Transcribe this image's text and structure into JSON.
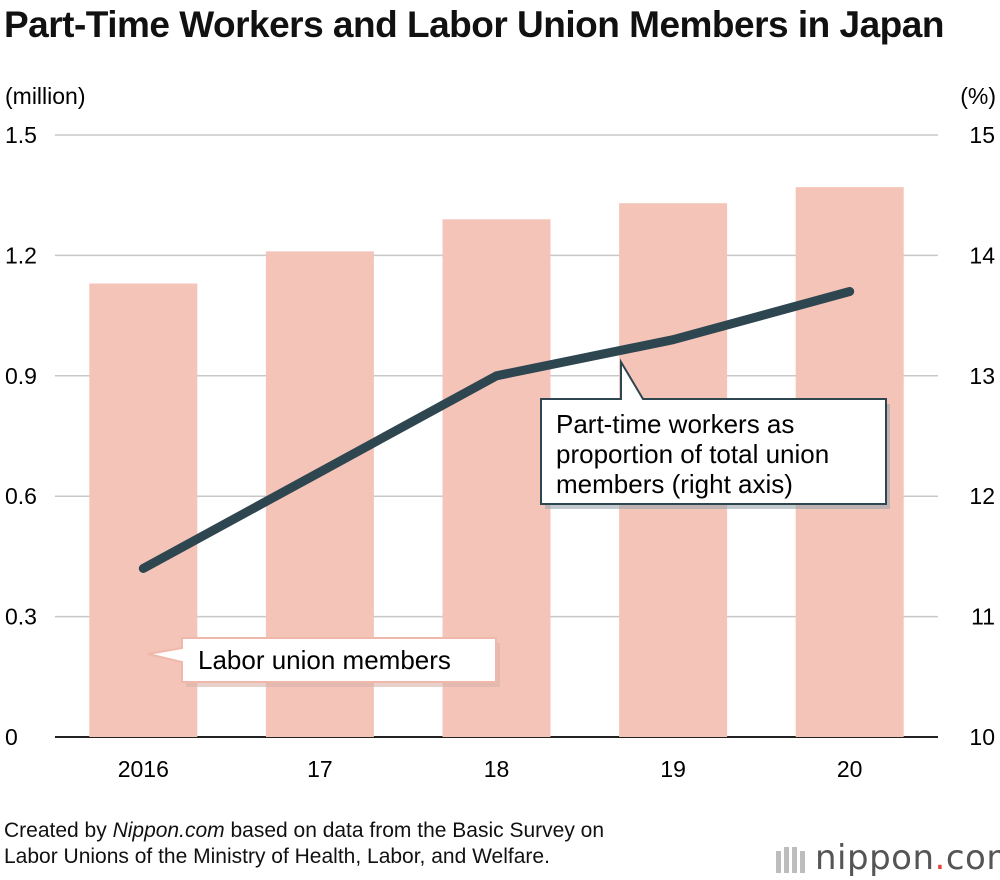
{
  "title": "Part-Time Workers and Labor Union Members in Japan",
  "chart_data": {
    "type": "bar",
    "categories": [
      "2016",
      "17",
      "18",
      "19",
      "20"
    ],
    "series": [
      {
        "name": "Labor union members",
        "type": "bar",
        "axis": "left",
        "values": [
          1.13,
          1.21,
          1.29,
          1.33,
          1.37
        ],
        "color": "#f4c4b8"
      },
      {
        "name": "Part-time workers as proportion of total union members (right axis)",
        "type": "line",
        "axis": "right",
        "values": [
          11.4,
          12.2,
          13.0,
          13.3,
          13.7
        ],
        "color": "#2e4650"
      }
    ],
    "left_axis": {
      "unit": "(million)",
      "ylim": [
        0,
        1.5
      ],
      "ticks": [
        "0",
        "0.3",
        "0.6",
        "0.9",
        "1.2",
        "1.5"
      ]
    },
    "right_axis": {
      "unit": "(%)",
      "ylim": [
        10,
        15
      ],
      "ticks": [
        "10",
        "11",
        "12",
        "13",
        "14",
        "15"
      ]
    },
    "grid": true,
    "annotations": {
      "line_label": [
        "Part-time workers as",
        "proportion of total union",
        "members (right axis)"
      ],
      "bar_label": "Labor union members"
    }
  },
  "source": {
    "prefix": "Created by ",
    "site": "Nippon.com",
    "line1_rest": " based on data from the Basic Survey on",
    "line2": "Labor Unions of the Ministry of Health, Labor, and Welfare."
  },
  "logo": {
    "name": "nippon",
    "dot": ".",
    "suffix": "com",
    "dot_color": "#e4433b"
  }
}
